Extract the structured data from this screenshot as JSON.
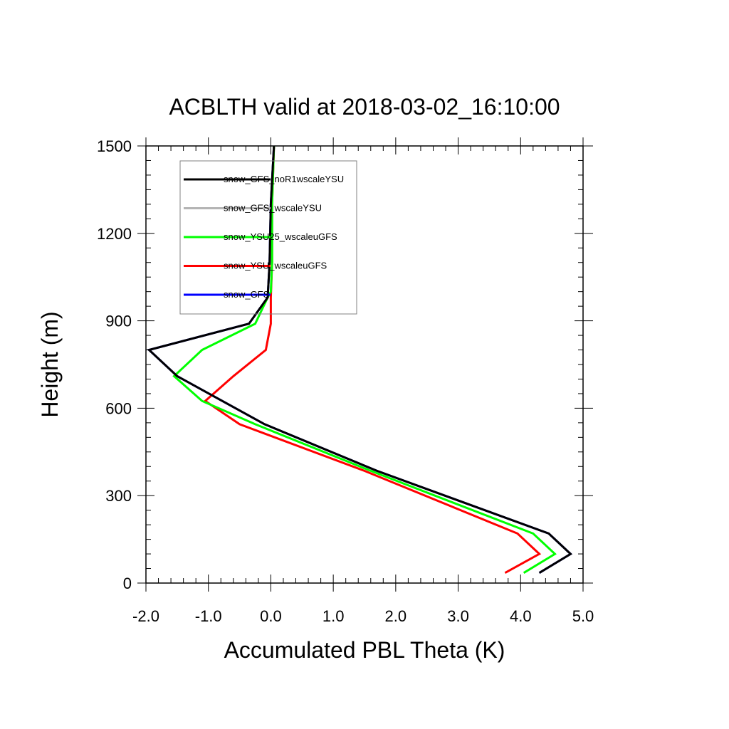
{
  "chart_data": {
    "type": "line",
    "title": "ACBLTH valid at 2018-03-02_16:10:00",
    "xlabel": "Accumulated PBL Theta (K)",
    "ylabel": "Height (m)",
    "xlim": [
      -2.0,
      5.0
    ],
    "ylim": [
      0,
      1500
    ],
    "xticks": [
      "-2.0",
      "-1.0",
      "0.0",
      "1.0",
      "2.0",
      "3.0",
      "4.0",
      "5.0"
    ],
    "xtick_values": [
      -2,
      -1,
      0,
      1,
      2,
      3,
      4,
      5
    ],
    "yticks": [
      "0",
      "300",
      "600",
      "900",
      "1200",
      "1500"
    ],
    "ytick_values": [
      0,
      300,
      600,
      900,
      1200,
      1500
    ],
    "grid": false,
    "legend_position": "top-left",
    "series": [
      {
        "name": "snow_GFS_wscaleYSU",
        "color": "#b4b4b4",
        "points": [
          [
            4.3,
            35
          ],
          [
            4.8,
            100
          ],
          [
            4.45,
            170
          ],
          [
            1.7,
            385
          ],
          [
            -0.1,
            545
          ],
          [
            -1.5,
            710
          ],
          [
            -1.95,
            800
          ],
          [
            -0.35,
            890
          ],
          [
            -0.05,
            980
          ],
          [
            -0.02,
            1100
          ],
          [
            0.0,
            1300
          ],
          [
            0.05,
            1500
          ]
        ]
      },
      {
        "name": "snow_GFS",
        "color": "#0000ff",
        "points": [
          [
            4.3,
            35
          ],
          [
            4.8,
            100
          ],
          [
            4.45,
            170
          ],
          [
            1.7,
            385
          ],
          [
            -0.1,
            545
          ],
          [
            -1.5,
            710
          ],
          [
            -1.95,
            800
          ],
          [
            -0.35,
            890
          ],
          [
            -0.05,
            980
          ],
          [
            -0.02,
            1100
          ],
          [
            0.0,
            1300
          ],
          [
            0.05,
            1500
          ]
        ]
      },
      {
        "name": "snow_YSU_wscaleuGFS",
        "color": "#ff0000",
        "points": [
          [
            3.75,
            35
          ],
          [
            4.3,
            100
          ],
          [
            3.95,
            170
          ],
          [
            1.5,
            385
          ],
          [
            -0.5,
            545
          ],
          [
            -1.05,
            625
          ],
          [
            -0.6,
            710
          ],
          [
            -0.08,
            800
          ],
          [
            0.0,
            890
          ],
          [
            0.0,
            980
          ],
          [
            0.02,
            1100
          ],
          [
            0.02,
            1300
          ],
          [
            0.05,
            1500
          ]
        ]
      },
      {
        "name": "snow_YSU25_wscaleuGFS",
        "color": "#00ff00",
        "points": [
          [
            4.05,
            35
          ],
          [
            4.55,
            100
          ],
          [
            4.2,
            170
          ],
          [
            1.6,
            385
          ],
          [
            -0.25,
            545
          ],
          [
            -1.1,
            625
          ],
          [
            -1.55,
            710
          ],
          [
            -1.1,
            800
          ],
          [
            -0.25,
            890
          ],
          [
            -0.05,
            980
          ],
          [
            0.0,
            1000
          ],
          [
            0.02,
            1100
          ],
          [
            0.02,
            1300
          ],
          [
            0.05,
            1500
          ]
        ]
      },
      {
        "name": "snow_GFS_noR1wscaleYSU",
        "color": "#000000",
        "points": [
          [
            4.3,
            35
          ],
          [
            4.8,
            100
          ],
          [
            4.45,
            170
          ],
          [
            1.7,
            385
          ],
          [
            -0.1,
            545
          ],
          [
            -1.5,
            710
          ],
          [
            -1.95,
            800
          ],
          [
            -0.35,
            890
          ],
          [
            -0.05,
            980
          ],
          [
            -0.02,
            1100
          ],
          [
            0.0,
            1300
          ],
          [
            0.05,
            1500
          ]
        ]
      }
    ],
    "legend_order": [
      "snow_GFS_noR1wscaleYSU",
      "snow_GFS_wscaleYSU",
      "snow_YSU25_wscaleuGFS",
      "snow_YSU_wscaleuGFS",
      "snow_GFS"
    ]
  }
}
